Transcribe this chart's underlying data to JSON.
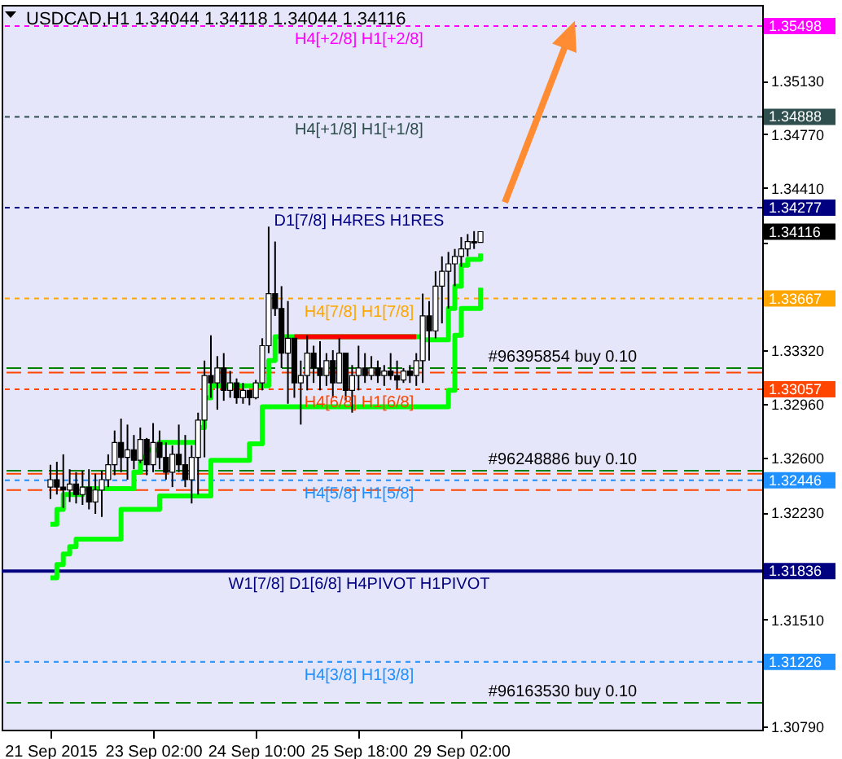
{
  "chart_data": {
    "type": "candlestick",
    "title": "USDCAD,H1  1.34044 1.34118 1.34044 1.34116",
    "categories": [
      "21 Sep 2015",
      null,
      null,
      null,
      null,
      null,
      null,
      null,
      null,
      null,
      null,
      null,
      null,
      null,
      null,
      null,
      "23 Sep 02:00",
      null,
      null,
      null,
      null,
      null,
      null,
      null,
      null,
      null,
      null,
      null,
      null,
      null,
      null,
      null,
      "24 Sep 10:00",
      null,
      null,
      null,
      null,
      null,
      null,
      null,
      null,
      null,
      null,
      null,
      null,
      null,
      null,
      null,
      "25 Sep 18:00",
      null,
      null,
      null,
      null,
      null,
      null,
      null,
      null,
      null,
      null,
      null,
      null,
      null,
      null,
      null,
      "29 Sep 02:00",
      null,
      null,
      null
    ],
    "ohlc": [
      [
        1.324,
        1.3255,
        1.3232,
        1.3245
      ],
      [
        1.3245,
        1.3257,
        1.3235,
        1.324
      ],
      [
        1.324,
        1.3262,
        1.3226,
        1.3238
      ],
      [
        1.3238,
        1.3252,
        1.323,
        1.3242
      ],
      [
        1.3242,
        1.325,
        1.3229,
        1.3235
      ],
      [
        1.3235,
        1.3251,
        1.3228,
        1.324
      ],
      [
        1.324,
        1.3252,
        1.3225,
        1.323
      ],
      [
        1.323,
        1.3249,
        1.3222,
        1.3238
      ],
      [
        1.3238,
        1.3251,
        1.322,
        1.3245
      ],
      [
        1.3245,
        1.3262,
        1.324,
        1.3255
      ],
      [
        1.3255,
        1.3278,
        1.3248,
        1.327
      ],
      [
        1.327,
        1.3286,
        1.325,
        1.326
      ],
      [
        1.326,
        1.3282,
        1.3245,
        1.3265
      ],
      [
        1.3265,
        1.3275,
        1.3252,
        1.3258
      ],
      [
        1.3258,
        1.328,
        1.3256,
        1.3272
      ],
      [
        1.3272,
        1.3273,
        1.3248,
        1.3255
      ],
      [
        1.3255,
        1.3283,
        1.325,
        1.327
      ],
      [
        1.327,
        1.3278,
        1.3252,
        1.326
      ],
      [
        1.326,
        1.327,
        1.3245,
        1.325
      ],
      [
        1.325,
        1.3268,
        1.324,
        1.3262
      ],
      [
        1.3262,
        1.3282,
        1.325,
        1.3255
      ],
      [
        1.3255,
        1.3275,
        1.324,
        1.3245
      ],
      [
        1.3245,
        1.3268,
        1.3229,
        1.326
      ],
      [
        1.326,
        1.329,
        1.3235,
        1.3285
      ],
      [
        1.3285,
        1.3325,
        1.326,
        1.3315
      ],
      [
        1.3315,
        1.3342,
        1.33,
        1.331
      ],
      [
        1.331,
        1.3328,
        1.3292,
        1.332
      ],
      [
        1.332,
        1.333,
        1.3298,
        1.3305
      ],
      [
        1.3305,
        1.3318,
        1.33,
        1.331
      ],
      [
        1.331,
        1.3313,
        1.3296,
        1.33
      ],
      [
        1.33,
        1.331,
        1.3296,
        1.3305
      ],
      [
        1.3305,
        1.3305,
        1.3295,
        1.33
      ],
      [
        1.33,
        1.3312,
        1.3299,
        1.331
      ],
      [
        1.331,
        1.334,
        1.3305,
        1.3335
      ],
      [
        1.3335,
        1.3415,
        1.333,
        1.337
      ],
      [
        1.337,
        1.3405,
        1.3355,
        1.336
      ],
      [
        1.336,
        1.3375,
        1.332,
        1.333
      ],
      [
        1.333,
        1.3365,
        1.3296,
        1.334
      ],
      [
        1.334,
        1.334,
        1.33,
        1.331
      ],
      [
        1.331,
        1.3325,
        1.3282,
        1.3315
      ],
      [
        1.3315,
        1.3342,
        1.3305,
        1.333
      ],
      [
        1.333,
        1.3335,
        1.331,
        1.332
      ],
      [
        1.332,
        1.3338,
        1.3305,
        1.3315
      ],
      [
        1.3315,
        1.333,
        1.3308,
        1.3325
      ],
      [
        1.3325,
        1.3332,
        1.33,
        1.331
      ],
      [
        1.331,
        1.334,
        1.331,
        1.333
      ],
      [
        1.333,
        1.333,
        1.3298,
        1.3305
      ],
      [
        1.3305,
        1.3322,
        1.329,
        1.3315
      ],
      [
        1.3315,
        1.3335,
        1.3305,
        1.332
      ],
      [
        1.332,
        1.333,
        1.331,
        1.3315
      ],
      [
        1.3315,
        1.3328,
        1.3312,
        1.332
      ],
      [
        1.332,
        1.3325,
        1.331,
        1.3315
      ],
      [
        1.3315,
        1.3322,
        1.3308,
        1.3318
      ],
      [
        1.3318,
        1.333,
        1.3312,
        1.3315
      ],
      [
        1.3315,
        1.3325,
        1.3306,
        1.3312
      ],
      [
        1.3312,
        1.332,
        1.331,
        1.3318
      ],
      [
        1.3318,
        1.3322,
        1.331,
        1.3315
      ],
      [
        1.3315,
        1.333,
        1.3308,
        1.3325
      ],
      [
        1.3325,
        1.337,
        1.331,
        1.3355
      ],
      [
        1.3355,
        1.3365,
        1.3325,
        1.3345
      ],
      [
        1.3345,
        1.3385,
        1.334,
        1.3375
      ],
      [
        1.3375,
        1.3395,
        1.335,
        1.3385
      ],
      [
        1.3385,
        1.3398,
        1.336,
        1.339
      ],
      [
        1.339,
        1.34,
        1.3375,
        1.3395
      ],
      [
        1.3395,
        1.3408,
        1.3388,
        1.34
      ],
      [
        1.34,
        1.341,
        1.3395,
        1.3405
      ],
      [
        1.3405,
        1.3412,
        1.34,
        1.3404
      ],
      [
        1.34044,
        1.34118,
        1.34044,
        1.34116
      ]
    ],
    "series": [
      {
        "type": "step",
        "color": "#00ff00",
        "values": [
          1.3215,
          1.3225,
          1.3235,
          1.3235,
          1.3235,
          1.3239,
          1.3239,
          1.3239,
          1.3239,
          1.3239,
          1.3239,
          1.3239,
          1.3239,
          1.325,
          1.326,
          1.3265,
          1.3265,
          1.327,
          1.327,
          1.327,
          1.327,
          1.327,
          1.327,
          1.328,
          1.33,
          1.3308,
          1.3308,
          1.3308,
          1.3308,
          1.3308,
          1.3308,
          1.3308,
          1.3308,
          1.3308,
          1.3325,
          1.3341,
          1.3341,
          1.3341,
          1.3341,
          null,
          null,
          null,
          null,
          null,
          null,
          null,
          null,
          null,
          null,
          null,
          null,
          null,
          null,
          null,
          null,
          null,
          null,
          1.3341,
          1.3339,
          1.3339,
          1.3339,
          1.3339,
          1.336,
          1.3375,
          1.3389,
          1.3393,
          1.3393,
          1.3397
        ]
      },
      {
        "type": "step",
        "color": "#00ff00",
        "values": [
          1.3179,
          1.3188,
          1.3195,
          1.32,
          1.3205,
          1.3205,
          1.3205,
          1.3205,
          1.3205,
          1.3205,
          1.3205,
          1.3225,
          1.3225,
          1.3225,
          1.3225,
          1.3225,
          1.3225,
          1.3234,
          1.3234,
          1.3234,
          1.3234,
          1.3234,
          1.3234,
          1.3234,
          1.3234,
          1.3258,
          1.3258,
          1.3258,
          1.3258,
          1.3258,
          1.3258,
          1.3269,
          1.3269,
          1.3294,
          1.3294,
          1.3294,
          1.3294,
          1.3294,
          1.3294,
          1.3294,
          1.3294,
          1.3294,
          1.3294,
          1.3294,
          1.3294,
          1.3294,
          1.3294,
          1.3294,
          1.3294,
          1.3294,
          1.3294,
          1.3294,
          1.3294,
          1.3294,
          1.3294,
          1.3294,
          1.3294,
          1.3294,
          1.3294,
          1.3294,
          1.3294,
          1.3294,
          1.3305,
          1.3342,
          1.336,
          1.336,
          1.336,
          1.3374
        ]
      },
      {
        "type": "step",
        "color": "#ff0000",
        "values": [
          null,
          null,
          null,
          null,
          null,
          null,
          null,
          null,
          null,
          null,
          null,
          null,
          null,
          null,
          null,
          null,
          null,
          null,
          null,
          null,
          null,
          null,
          null,
          null,
          null,
          null,
          null,
          null,
          null,
          null,
          null,
          null,
          null,
          null,
          null,
          null,
          null,
          null,
          1.3341,
          1.3341,
          1.3341,
          1.3341,
          1.3341,
          1.3341,
          1.3341,
          1.3341,
          1.3341,
          1.3341,
          1.3341,
          1.3341,
          1.3341,
          1.3341,
          1.3341,
          1.3341,
          1.3341,
          1.3341,
          1.3341,
          1.3341,
          null,
          null,
          null,
          null,
          null,
          null,
          null,
          null,
          null,
          null
        ]
      }
    ],
    "ylim": [
      1.3077,
      1.3564
    ],
    "yticks": [
      {
        "value": 1.3079,
        "label": "1.30790"
      },
      {
        "value": 1.3151,
        "label": "1.31510"
      },
      {
        "value": 1.3223,
        "label": "1.32230"
      },
      {
        "value": 1.326,
        "label": "1.32600"
      },
      {
        "value": 1.3296,
        "label": "1.32960"
      },
      {
        "value": 1.3332,
        "label": "1.33320"
      },
      {
        "value": 1.3404,
        "label": null
      },
      {
        "value": 1.3441,
        "label": "1.34410"
      },
      {
        "value": 1.3477,
        "label": "1.34770"
      },
      {
        "value": 1.3513,
        "label": "1.35130"
      }
    ],
    "ref_lines": [
      {
        "axis": "y",
        "value": 1.35498,
        "label": "1.35498",
        "color": "#ff00ff",
        "line_style": "dotted"
      },
      {
        "axis": "y",
        "value": 1.34888,
        "label": "1.34888",
        "color": "#2f4f4f",
        "line_style": "dotted"
      },
      {
        "axis": "y",
        "value": 1.34277,
        "label": "1.34277",
        "color": "#000080",
        "line_style": "dotted"
      },
      {
        "axis": "y",
        "value": 1.33667,
        "label": "1.33667",
        "color": "#ffa500",
        "line_style": "dotted"
      },
      {
        "axis": "y",
        "value": 1.33057,
        "label": "1.33057",
        "color": "#ff4500",
        "line_style": "dotted"
      },
      {
        "axis": "y",
        "value": 1.32446,
        "label": "1.32446",
        "color": "#1e90ff",
        "line_style": "dotted"
      },
      {
        "axis": "y",
        "value": 1.31836,
        "label": "1.31836",
        "color": "#000080",
        "line_style": "solid"
      },
      {
        "axis": "y",
        "value": 1.31226,
        "label": "1.31226",
        "color": "#1e90ff",
        "line_style": "dotted"
      },
      {
        "axis": "y",
        "value": 1.332,
        "label": "#96395854 buy 0.10",
        "color": "#008000",
        "line_style": "dashed"
      },
      {
        "axis": "y",
        "value": 1.3251,
        "label": "#96248886 buy 0.10",
        "color": "#008000",
        "line_style": "dashed"
      },
      {
        "axis": "y",
        "value": 1.3095,
        "label": "#96163530 buy 0.10",
        "color": "#008000",
        "line_style": "dashed"
      },
      {
        "axis": "y",
        "value": 1.3317,
        "label": null,
        "color": "#ff4500",
        "line_style": "dashed"
      },
      {
        "axis": "y",
        "value": 1.3249,
        "label": null,
        "color": "#ff4500",
        "line_style": "dashed"
      },
      {
        "axis": "y",
        "value": 1.3238,
        "label": null,
        "color": "#ff4500",
        "line_style": "dashed"
      }
    ],
    "annotations": [
      "1.34116",
      {
        "text": "H4[+2/8] H1[+2/8]",
        "y": 1.35498
      },
      {
        "text": "H4[+1/8] H1[+1/8]",
        "y": 1.34888
      },
      {
        "text": "D1[7/8] H4RES H1RES",
        "y": 1.34277
      },
      {
        "text": "H4[7/8] H1[7/8]",
        "y": 1.33667
      },
      {
        "text": "H4[6/8] H1[6/8]",
        "y": 1.33057
      },
      {
        "text": "H4[5/8] H1[5/8]",
        "y": 1.32446
      },
      {
        "text": "W1[7/8] D1[6/8] H4PIVOT H1PIVOT",
        "y": 1.31836
      },
      {
        "text": "H4[3/8] H1[3/8]",
        "y": 1.31226
      }
    ]
  }
}
